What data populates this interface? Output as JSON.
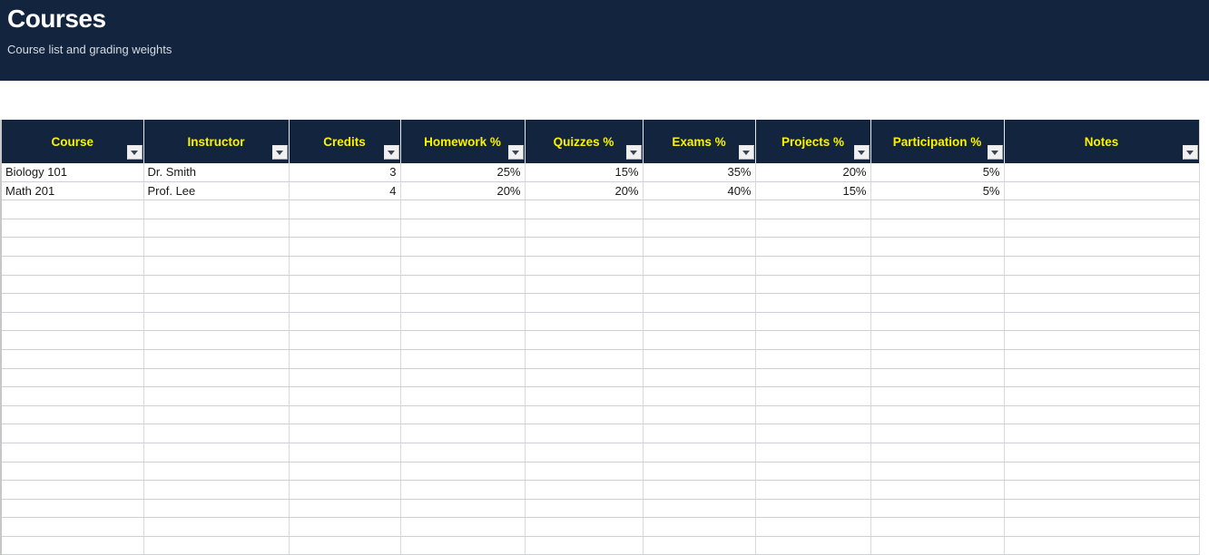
{
  "page": {
    "title": "Courses",
    "subtitle": "Course list and grading weights"
  },
  "table": {
    "columns": [
      {
        "label": "Course"
      },
      {
        "label": "Instructor"
      },
      {
        "label": "Credits"
      },
      {
        "label": "Homework %"
      },
      {
        "label": "Quizzes %"
      },
      {
        "label": "Exams %"
      },
      {
        "label": "Projects %"
      },
      {
        "label": "Participation %"
      },
      {
        "label": "Notes"
      }
    ],
    "rows": [
      [
        "Biology 101",
        "Dr. Smith",
        "3",
        "25%",
        "15%",
        "35%",
        "20%",
        "5%",
        ""
      ],
      [
        "Math 201",
        "Prof. Lee",
        "4",
        "20%",
        "20%",
        "40%",
        "15%",
        "5%",
        ""
      ]
    ],
    "empty_rows_visible": 20
  },
  "icons": {
    "filter_dropdown": "triangle-down"
  },
  "colors": {
    "banner_bg": "#13253E",
    "header_bg": "#13253E",
    "header_text": "#FCF200",
    "subtitle_text": "#D6DBE2",
    "body_text": "#1A1A1A",
    "grid_line_vertical": "#D9D9D9",
    "grid_line_horizontal": "#CDD1D6"
  }
}
